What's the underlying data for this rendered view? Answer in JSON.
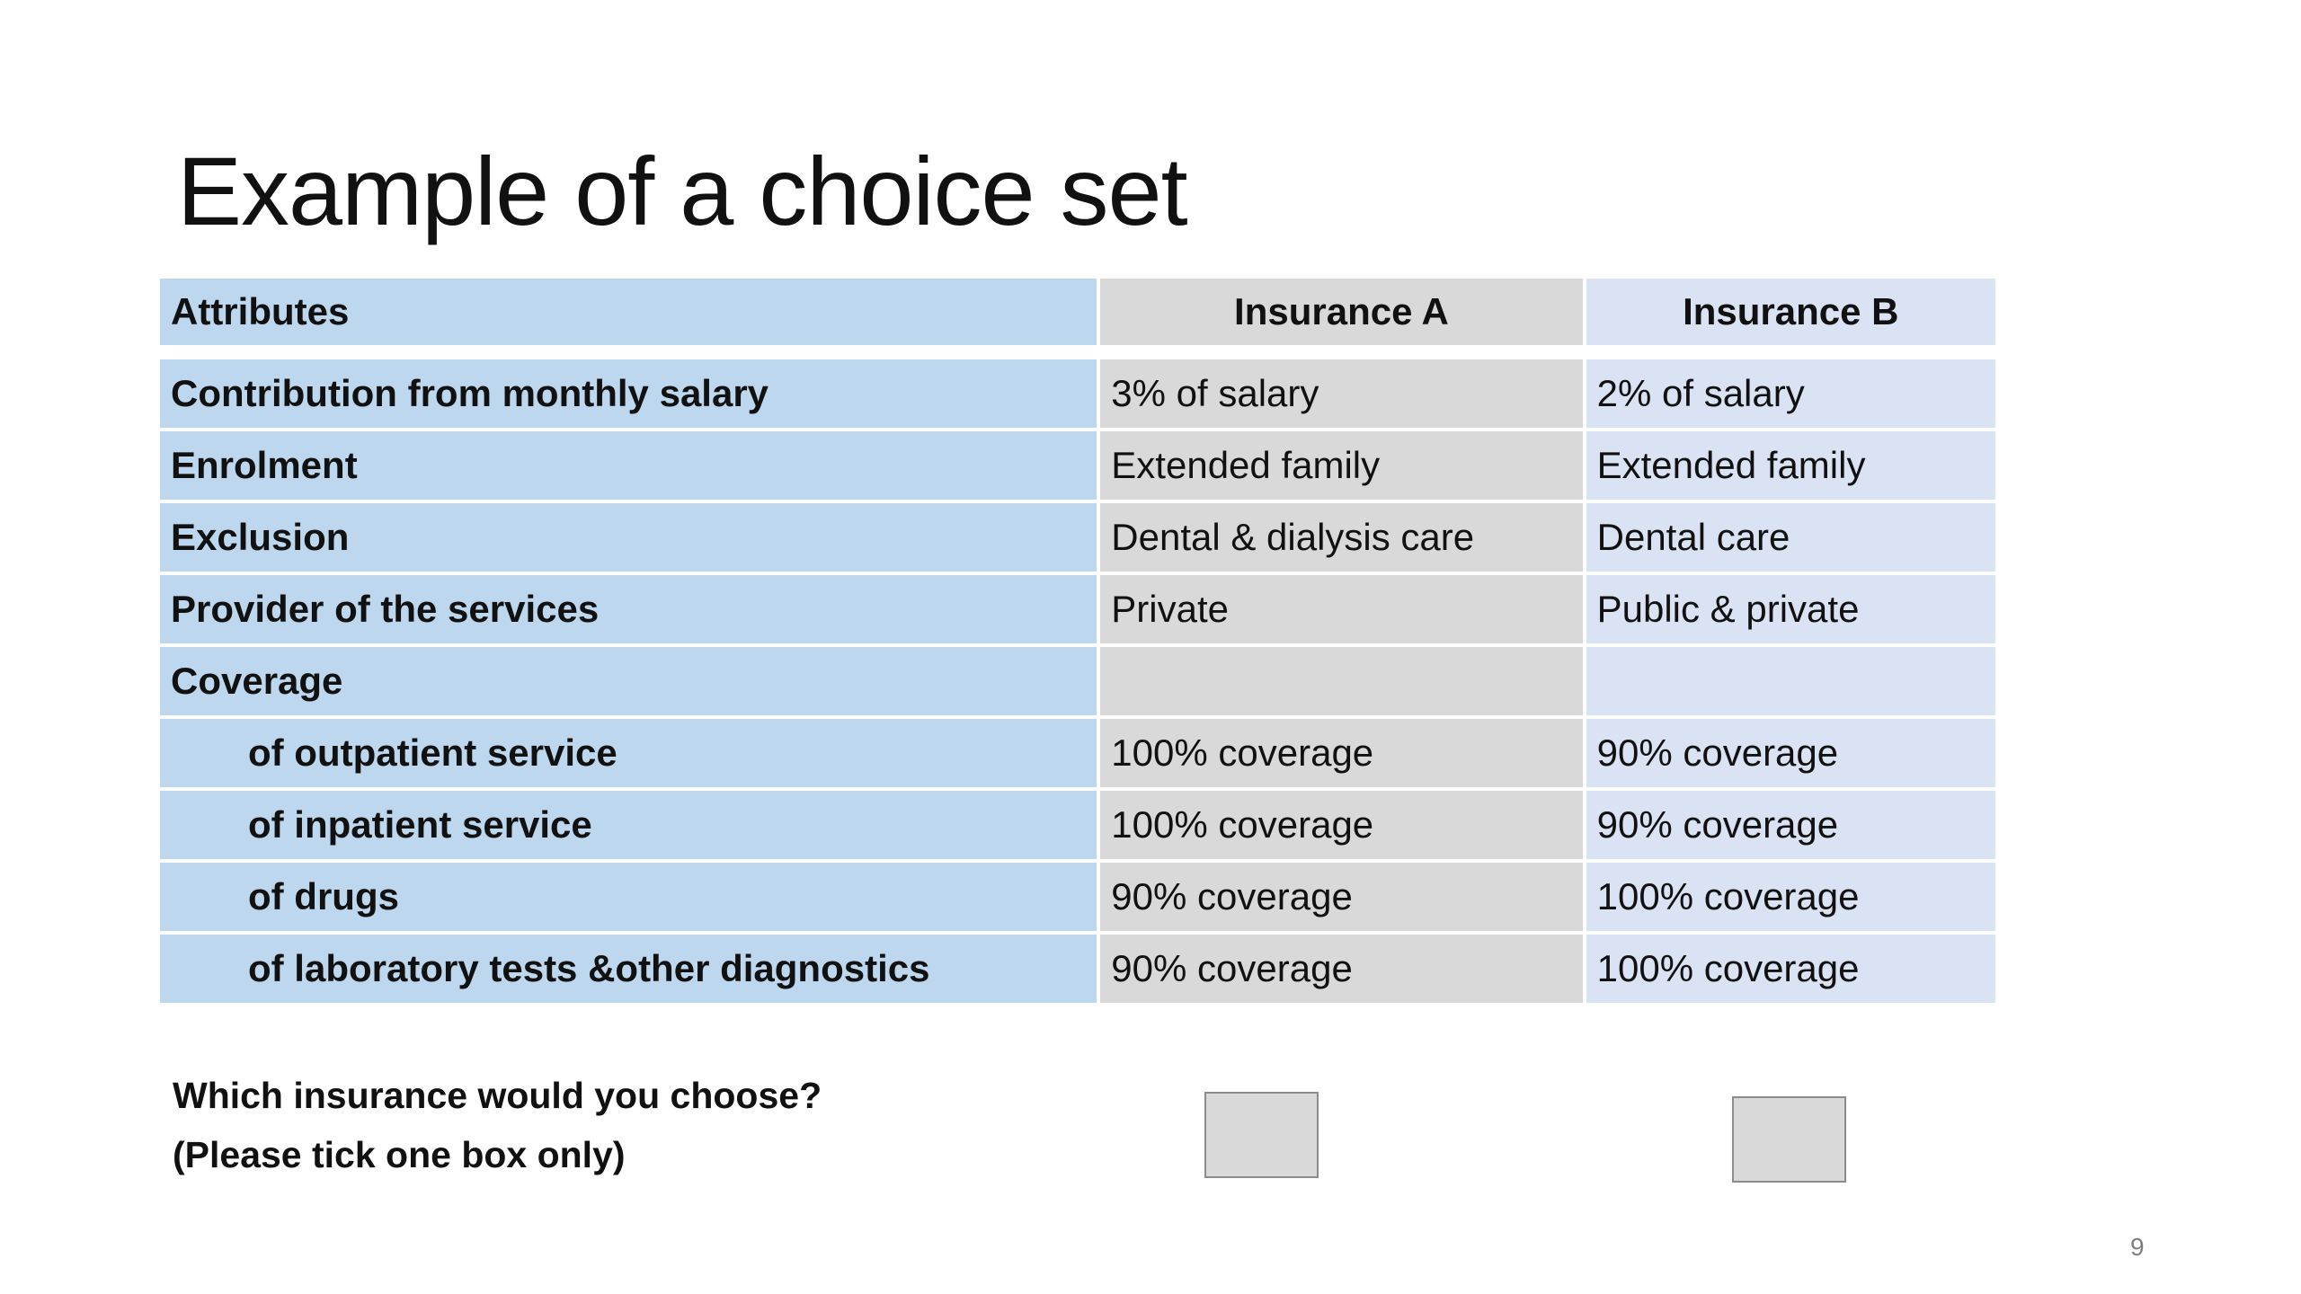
{
  "slide": {
    "title": "Example of a choice set",
    "page_number": "9"
  },
  "table": {
    "headers": {
      "attributes": "Attributes",
      "insurance_a": "Insurance A",
      "insurance_b": "Insurance B"
    },
    "rows": [
      {
        "attribute": "Contribution from monthly salary",
        "a": "3% of salary",
        "b": "2% of salary"
      },
      {
        "attribute": "Enrolment",
        "a": "Extended family",
        "b": "Extended family"
      },
      {
        "attribute": "Exclusion",
        "a": "Dental & dialysis care",
        "b": "Dental care"
      },
      {
        "attribute": "Provider of the services",
        "a": "Private",
        "b": "Public & private"
      },
      {
        "attribute": "Coverage",
        "a": "",
        "b": ""
      },
      {
        "attribute": "of outpatient service",
        "a": "100% coverage",
        "b": "90% coverage"
      },
      {
        "attribute": "of inpatient service",
        "a": "100% coverage",
        "b": "90% coverage"
      },
      {
        "attribute": "of drugs",
        "a": "90% coverage",
        "b": "100% coverage"
      },
      {
        "attribute": "of laboratory tests &other diagnostics",
        "a": "90% coverage",
        "b": "100% coverage"
      }
    ]
  },
  "question": {
    "line1": "Which insurance would you choose?",
    "line2": "(Please tick one box only)"
  },
  "colors": {
    "attribute_column": "#bdd7ee",
    "insurance_a_column": "#d9d9d9",
    "insurance_b_column": "#dae3f3",
    "checkbox_fill": "#d9d9d9"
  }
}
